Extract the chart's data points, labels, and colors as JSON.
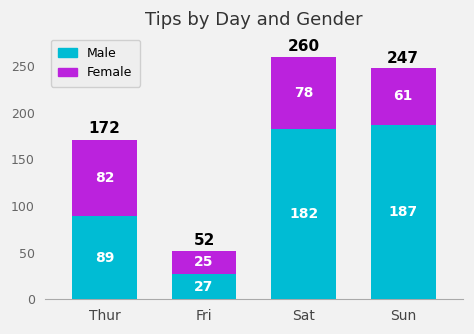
{
  "title": "Tips by Day and Gender",
  "categories": [
    "Thur",
    "Fri",
    "Sat",
    "Sun"
  ],
  "male_values": [
    89,
    27,
    182,
    187
  ],
  "female_values": [
    82,
    25,
    78,
    61
  ],
  "totals": [
    172,
    52,
    260,
    247
  ],
  "male_color": "#00BCD4",
  "female_color": "#BB22DD",
  "bg_color": "#f2f2f2",
  "plot_bg_color": "#f2f2f2",
  "title_fontsize": 13,
  "label_fontsize": 10,
  "total_fontsize": 11,
  "ylim": [
    0,
    285
  ],
  "yticks": [
    0,
    50,
    100,
    150,
    200,
    250
  ],
  "bar_width": 0.65
}
